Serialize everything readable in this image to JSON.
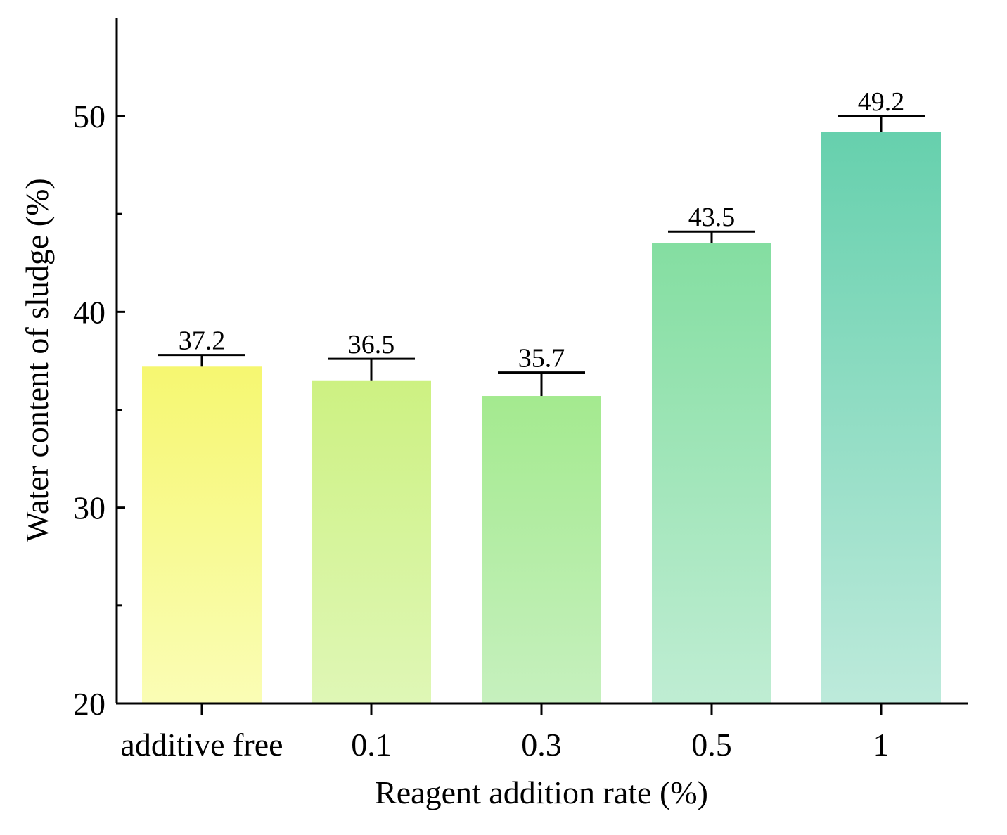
{
  "chart_data": {
    "type": "bar",
    "title": "",
    "xlabel": "Reagent addition rate (%)",
    "ylabel": "Water content of sludge (%)",
    "categories": [
      "additive free",
      "0.1",
      "0.3",
      "0.5",
      "1"
    ],
    "values": [
      37.2,
      36.5,
      35.7,
      43.5,
      49.2
    ],
    "value_labels": [
      "37.2",
      "36.5",
      "35.7",
      "43.5",
      "49.2"
    ],
    "error_plus": [
      0.6,
      1.1,
      1.2,
      0.6,
      0.8
    ],
    "ylim": [
      20,
      55
    ],
    "yticks": [
      20,
      30,
      40,
      50
    ],
    "yticks_minor": [
      25,
      35,
      45
    ],
    "grid": false,
    "colors": {
      "bar_tops": [
        "#f6f771",
        "#cdf182",
        "#a4ea8f",
        "#84dea1",
        "#66d0ad"
      ],
      "bar_bottoms": [
        "#fafdb5",
        "#dff7b6",
        "#c6f0be",
        "#bfedd3",
        "#bdeadb"
      ],
      "axis": "#000000"
    }
  }
}
